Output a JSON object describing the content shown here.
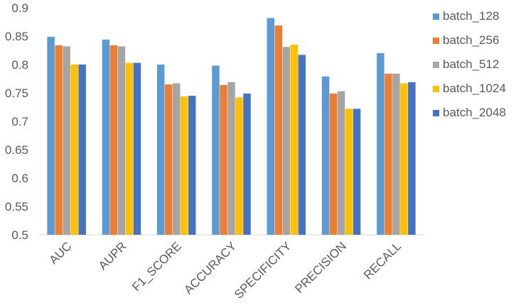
{
  "chart_data": {
    "type": "bar",
    "categories": [
      "AUC",
      "AUPR",
      "F1_SCORE",
      "ACCURACY",
      "SPECIFICITY",
      "PRECISION",
      "RECALL"
    ],
    "series": [
      {
        "name": "batch_128",
        "color": "#5B9BD5",
        "values": [
          0.849,
          0.844,
          0.8,
          0.798,
          0.882,
          0.779,
          0.82
        ]
      },
      {
        "name": "batch_256",
        "color": "#ED7D31",
        "values": [
          0.834,
          0.834,
          0.765,
          0.764,
          0.869,
          0.749,
          0.784
        ]
      },
      {
        "name": "batch_512",
        "color": "#A5A5A5",
        "values": [
          0.832,
          0.832,
          0.767,
          0.769,
          0.831,
          0.753,
          0.784
        ]
      },
      {
        "name": "batch_1024",
        "color": "#FFC000",
        "values": [
          0.8,
          0.803,
          0.744,
          0.742,
          0.835,
          0.722,
          0.767
        ]
      },
      {
        "name": "batch_2048",
        "color": "#4472C4",
        "values": [
          0.8,
          0.803,
          0.745,
          0.749,
          0.817,
          0.722,
          0.769
        ]
      }
    ],
    "yticks": [
      "0.5",
      "0.55",
      "0.6",
      "0.65",
      "0.7",
      "0.75",
      "0.8",
      "0.85",
      "0.9"
    ],
    "ylim": [
      0.5,
      0.9
    ],
    "grid": false,
    "legend_position": "right"
  }
}
